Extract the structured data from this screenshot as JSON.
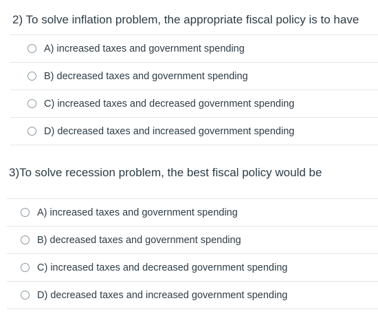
{
  "questions": [
    {
      "text": "2) To solve inflation problem, the appropriate fiscal policy is to have",
      "options": [
        "A) increased taxes and government spending",
        "B) decreased taxes and government spending",
        "C) increased taxes and decreased government spending",
        "D) decreased taxes and increased government spending"
      ]
    },
    {
      "text": "3)To solve recession problem, the best fiscal policy would be",
      "options": [
        "A) increased taxes and government spending",
        "B) decreased taxes and government spending",
        "C) increased taxes and decreased government spending",
        "D) decreased taxes and increased government spending"
      ]
    }
  ]
}
